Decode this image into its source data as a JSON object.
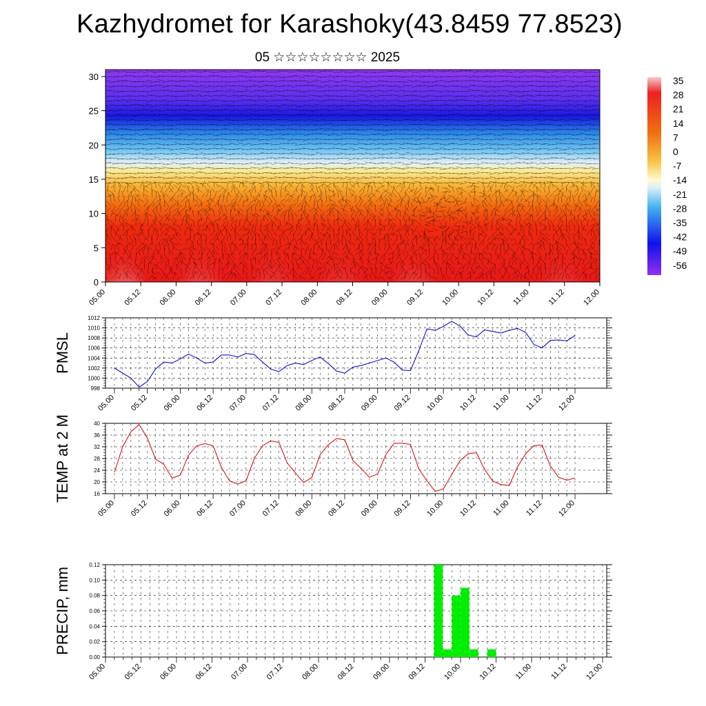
{
  "title": "Kazhydromet for Karashoky(43.8459 77.8523)",
  "subtitle": "05 ☆☆☆☆☆☆☆☆ 2025",
  "x_tick_labels": [
    "05.00",
    "05.12",
    "06.00",
    "06.12",
    "07.00",
    "07.12",
    "08.00",
    "08.12",
    "09.00",
    "09.12",
    "10.00",
    "10.12",
    "11.00",
    "11.12",
    "12.00"
  ],
  "colorbar": {
    "labels": [
      "35",
      "28",
      "21",
      "14",
      "7",
      "0",
      "-7",
      "-14",
      "-21",
      "-28",
      "-35",
      "-42",
      "-49",
      "-56"
    ],
    "colors": [
      "#f3c1c1",
      "#ee2020",
      "#f07010",
      "#f8c040",
      "#fffbd0",
      "#d8eef8",
      "#40b0f0",
      "#1010f0",
      "#9030f0"
    ]
  },
  "chart_data": [
    {
      "type": "heatmap",
      "name": "temperature and wind cross-section",
      "y_ticks": [
        0,
        5,
        10,
        15,
        20,
        25,
        30
      ],
      "ylim": [
        0,
        31
      ],
      "z_range": [
        -56,
        35
      ],
      "levels_bands": [
        {
          "y": [
            0,
            10
          ],
          "temp_approx": "21 to 35"
        },
        {
          "y": [
            10,
            15
          ],
          "temp_approx": "7 to 21"
        },
        {
          "y": [
            15,
            20
          ],
          "temp_approx": "-28 to 0"
        },
        {
          "y": [
            20,
            26
          ],
          "temp_approx": "-56 to -28"
        },
        {
          "y": [
            26,
            31
          ],
          "temp_approx": "-56 and below"
        }
      ]
    },
    {
      "type": "line",
      "ylabel": "PMSL",
      "color": "#1010d0",
      "ylim": [
        998,
        1012
      ],
      "y_ticks": [
        998,
        1000,
        1002,
        1004,
        1006,
        1008,
        1010,
        1012
      ],
      "values": [
        1002,
        1001,
        1000,
        998.2,
        999.3,
        1001.8,
        1003.2,
        1003,
        1003.8,
        1004.8,
        1004,
        1003,
        1003.2,
        1004.6,
        1004.6,
        1004.2,
        1004.9,
        1004.7,
        1003.2,
        1001.8,
        1001.3,
        1002.5,
        1003,
        1002.7,
        1003.5,
        1004.2,
        1002.9,
        1001.4,
        1001,
        1002.2,
        1002.5,
        1003,
        1003.5,
        1004,
        1003.2,
        1001.6,
        1001.5,
        1005.5,
        1009.8,
        1009.5,
        1010.3,
        1011.3,
        1010.4,
        1008.6,
        1008.2,
        1009.6,
        1009.3,
        1009,
        1009.5,
        1009.9,
        1009.1,
        1006.7,
        1006,
        1007.5,
        1007.6,
        1007.4,
        1008.5
      ]
    },
    {
      "type": "line",
      "ylabel": "TEMP at 2 M",
      "color": "#e01010",
      "ylim": [
        16,
        40
      ],
      "y_ticks": [
        16,
        20,
        24,
        28,
        32,
        36,
        40
      ],
      "values": [
        23.3,
        32,
        37.1,
        39.6,
        35,
        27.8,
        26,
        21.3,
        22.3,
        29.1,
        32.3,
        33.1,
        32.3,
        25,
        20.3,
        19.3,
        20.4,
        28,
        32.3,
        34,
        33.5,
        26.5,
        23.1,
        19.8,
        21.5,
        29.2,
        32.7,
        34.8,
        34.4,
        27.3,
        24.6,
        21.6,
        22.7,
        29.3,
        33.2,
        33.2,
        32.8,
        24.5,
        20.3,
        16.8,
        17.6,
        22.5,
        27.2,
        29.6,
        30,
        24.3,
        20.3,
        19.1,
        18.8,
        25.1,
        29.6,
        32.4,
        32.6,
        25.4,
        21.6,
        20.6,
        21.3
      ]
    },
    {
      "type": "bar",
      "ylabel": "PRECIP, mm",
      "color": "#00ee00",
      "ylim": [
        0,
        0.12
      ],
      "y_ticks": [
        0.0,
        0.02,
        0.04,
        0.06,
        0.08,
        0.1,
        0.12
      ],
      "y_tick_labels": [
        "0.00",
        "0.02",
        "0.04",
        "0.06",
        "0.08",
        "0.10",
        "0.12"
      ],
      "values": [
        0,
        0,
        0,
        0,
        0,
        0,
        0,
        0,
        0,
        0,
        0,
        0,
        0,
        0,
        0,
        0,
        0,
        0,
        0,
        0,
        0,
        0,
        0,
        0,
        0,
        0,
        0,
        0,
        0,
        0,
        0,
        0,
        0,
        0,
        0,
        0,
        0,
        0.12,
        0.01,
        0.08,
        0.09,
        0.01,
        0,
        0.01,
        0,
        0,
        0,
        0,
        0,
        0,
        0,
        0,
        0,
        0,
        0,
        0,
        0
      ]
    }
  ]
}
